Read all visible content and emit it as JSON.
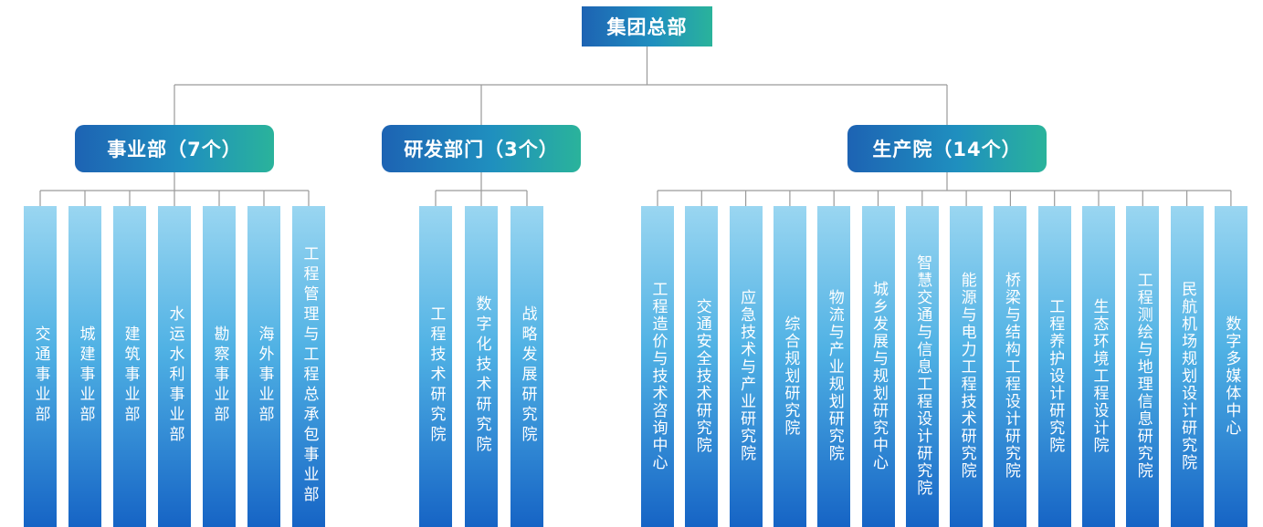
{
  "root": "集团总部",
  "categories": [
    {
      "label": "事业部（7个）",
      "children": [
        "交通事业部",
        "城建事业部",
        "建筑事业部",
        "水运水利事业部",
        "勘察事业部",
        "海外事业部",
        "工程管理与工程总承包事业部"
      ]
    },
    {
      "label": "研发部门（3个）",
      "children": [
        "工程技术研究院",
        "数字化技术研究院",
        "战略发展研究院"
      ]
    },
    {
      "label": "生产院（14个）",
      "children": [
        "工程造价与技术咨询中心",
        "交通安全技术研究院",
        "应急技术与产业研究院",
        "综合规划研究院",
        "物流与产业规划研究院",
        "城乡发展与规划研究中心",
        "智慧交通与信息工程设计研究院",
        "能源与电力工程技术研究院",
        "桥梁与结构工程设计研究院",
        "工程养护设计研究院",
        "生态环境工程设计院",
        "工程测绘与地理信息研究院",
        "民航机场规划设计研究院",
        "数字多媒体中心"
      ]
    }
  ],
  "colors": {
    "connector": "#9a9a9a",
    "header_gradient": [
      "#1d63b3",
      "#1f8fbf",
      "#2ab39b"
    ],
    "leaf_gradient": [
      "#9ad6f1",
      "#4fb1e4",
      "#1664c5"
    ]
  }
}
